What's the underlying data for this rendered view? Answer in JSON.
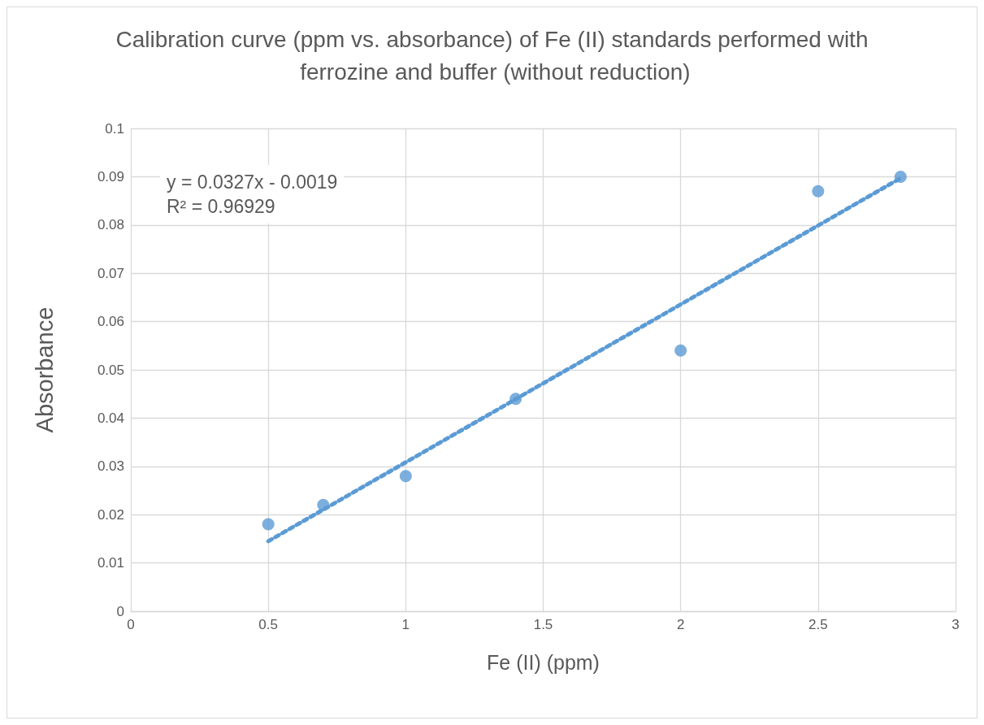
{
  "chart_data": {
    "type": "scatter",
    "title": "Calibration curve (ppm vs. absorbance) of Fe (II) standards performed with ferrozine and buffer (without reduction)",
    "xlabel": "Fe (II) (ppm)",
    "ylabel": "Absorbance",
    "annotations": [
      "y = 0.0327x - 0.0019",
      "R² = 0.96929"
    ],
    "series": [
      {
        "color": "#5b9bd5",
        "x": [
          0.5,
          0.7,
          1,
          1.4,
          2,
          2.5,
          2.8
        ],
        "values": [
          0.018,
          0.022,
          0.028,
          0.044,
          0.054,
          0.087,
          0.09
        ],
        "marker": "circle"
      },
      {
        "type": "line",
        "color": "#5b9bd5",
        "x": [
          0.5,
          2.8
        ],
        "values": [
          0.0145,
          0.0897
        ],
        "line_style": "dotted",
        "marker": "none"
      }
    ],
    "xlim": [
      0,
      3
    ],
    "xticks": [
      0,
      0.5,
      1,
      1.5,
      2,
      2.5,
      3
    ],
    "ylim": [
      0,
      0.1
    ],
    "yticks": [
      0,
      0.01,
      0.02,
      0.03,
      0.04,
      0.05,
      0.06,
      0.07,
      0.08,
      0.09,
      0.1
    ],
    "grid": true
  }
}
